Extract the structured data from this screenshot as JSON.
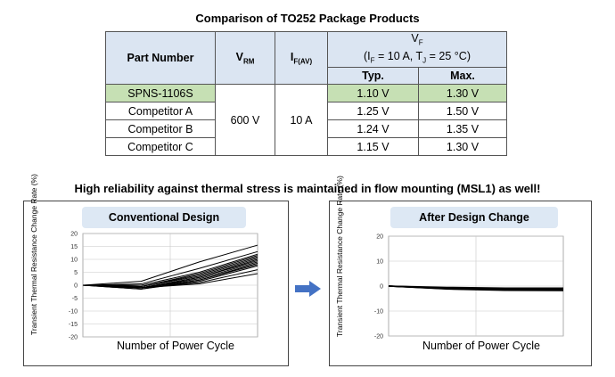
{
  "table": {
    "title": "Comparison of TO252 Package Products",
    "headers": {
      "part_number": "Part Number",
      "vrm_main": "V",
      "vrm_sub": "RM",
      "if_main": "I",
      "if_sub": "F(AV)",
      "vf_main": "V",
      "vf_sub": "F",
      "vf_cond_a": "(I",
      "vf_cond_a_sub": "F",
      "vf_cond_b": " = 10 A, T",
      "vf_cond_b_sub": "J",
      "vf_cond_c": " = 25 °C)",
      "typ": "Typ.",
      "max": "Max."
    },
    "vrm_value": "600 V",
    "if_value": "10 A",
    "rows": [
      {
        "part": "SPNS-1106S",
        "typ": "1.10 V",
        "max": "1.30 V"
      },
      {
        "part": "Competitor A",
        "typ": "1.25 V",
        "max": "1.50 V"
      },
      {
        "part": "Competitor B",
        "typ": "1.24 V",
        "max": "1.35 V"
      },
      {
        "part": "Competitor C",
        "typ": "1.15 V",
        "max": "1.30 V"
      }
    ],
    "highlight_color": "#c6e0b4",
    "header_color": "#dbe5f2"
  },
  "headline": "High reliability against thermal stress is maintained in flow mounting (MSL1) as well!",
  "chart_data": [
    {
      "type": "line",
      "title": "Conventional Design",
      "xlabel": "Number of Power Cycle",
      "ylabel": "Transient Thermal Resistance Change Rate (%)",
      "ylim": [
        -20,
        20
      ],
      "yticks": [
        20,
        15,
        10,
        5,
        0,
        -5,
        -10,
        -15,
        -20
      ],
      "grid": true,
      "x": [
        0,
        1,
        2,
        3
      ],
      "series": [
        {
          "values": [
            0,
            1.5,
            9,
            15.5
          ]
        },
        {
          "values": [
            0,
            0.5,
            6.5,
            13
          ]
        },
        {
          "values": [
            0,
            0,
            5,
            12
          ]
        },
        {
          "values": [
            0,
            -0.5,
            4.5,
            11.5
          ]
        },
        {
          "values": [
            0,
            -0.5,
            4,
            11
          ]
        },
        {
          "values": [
            0,
            -0.5,
            3.5,
            10.5
          ]
        },
        {
          "values": [
            0,
            -1,
            3,
            10
          ]
        },
        {
          "values": [
            0,
            -1,
            3,
            9.5
          ]
        },
        {
          "values": [
            0,
            -1,
            2.5,
            9
          ]
        },
        {
          "values": [
            0,
            -1,
            2,
            8.5
          ]
        },
        {
          "values": [
            0,
            -1.5,
            2,
            8
          ]
        },
        {
          "values": [
            0,
            -1.5,
            1.5,
            7.5
          ]
        },
        {
          "values": [
            0,
            -1,
            1,
            6
          ]
        },
        {
          "values": [
            0,
            -1,
            0.5,
            4.5
          ]
        }
      ],
      "color": "#000000"
    },
    {
      "type": "line",
      "title": "After Design Change",
      "xlabel": "Number of Power Cycle",
      "ylabel": "Transient Thermal Resistance Change Rate (%)",
      "ylim": [
        -20,
        20
      ],
      "yticks": [
        20,
        10,
        0,
        -10,
        -20
      ],
      "grid": true,
      "x": [
        0,
        1,
        2,
        3
      ],
      "series": [
        {
          "values": [
            0,
            -0.5,
            -0.8,
            -0.8
          ]
        },
        {
          "values": [
            0,
            -0.7,
            -1.0,
            -1.1
          ]
        },
        {
          "values": [
            0,
            -0.8,
            -1.2,
            -1.3
          ]
        },
        {
          "values": [
            0,
            -1.0,
            -1.4,
            -1.5
          ]
        },
        {
          "values": [
            0,
            -1.1,
            -1.6,
            -1.7
          ]
        },
        {
          "values": [
            0,
            -1.2,
            -1.7,
            -1.8
          ]
        }
      ],
      "color": "#000000"
    }
  ],
  "arrow_color": "#4472c4"
}
